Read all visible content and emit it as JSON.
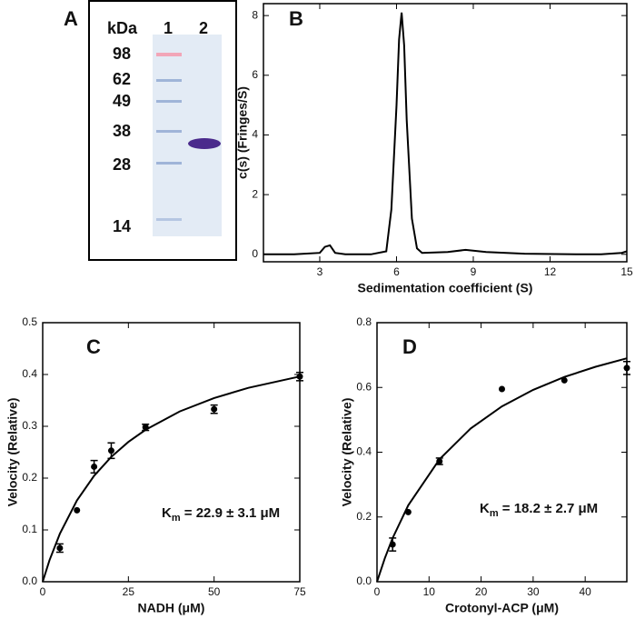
{
  "gel": {
    "panel_label": "A",
    "unit": "kDa",
    "lanes": [
      "1",
      "2"
    ],
    "markers": [
      98,
      62,
      49,
      38,
      28,
      14
    ]
  },
  "chart_data": [
    {
      "type": "line",
      "panel_label": "B",
      "xlabel": "Sedimentation coefficient (S)",
      "ylabel": "c(s) (Fringes/S)",
      "color": "#000000",
      "x": [
        0.8,
        1,
        2,
        3,
        3.2,
        3.4,
        3.6,
        4,
        5,
        5.6,
        5.8,
        6.0,
        6.1,
        6.2,
        6.3,
        6.4,
        6.6,
        6.8,
        7,
        8,
        8.7,
        9.5,
        11,
        13,
        14,
        14.8,
        15
      ],
      "values": [
        0,
        0,
        0,
        0.05,
        0.25,
        0.3,
        0.05,
        0,
        0,
        0.1,
        1.5,
        5,
        7.2,
        8.1,
        7.0,
        4.5,
        1.2,
        0.2,
        0.05,
        0.08,
        0.15,
        0.08,
        0.02,
        0,
        0,
        0.05,
        0.1
      ],
      "xlim": [
        0.8,
        15
      ],
      "ylim": [
        -0.25,
        8.4
      ],
      "xticks": [
        3,
        6,
        9,
        12,
        15
      ],
      "yticks": [
        0,
        2,
        4,
        6,
        8
      ]
    },
    {
      "type": "scatter",
      "panel_label": "C",
      "xlabel": "NADH (μM)",
      "ylabel": "Velocity (Relative)",
      "color": "#000000",
      "x": [
        5,
        10,
        15,
        20,
        30,
        50,
        75
      ],
      "values": [
        0.065,
        0.138,
        0.222,
        0.253,
        0.298,
        0.333,
        0.396
      ],
      "errors": [
        0.008,
        null,
        0.012,
        0.015,
        0.006,
        0.008,
        0.008
      ],
      "fit": {
        "x": [
          0,
          2,
          5,
          10,
          15,
          20,
          25,
          30,
          40,
          50,
          60,
          75
        ],
        "values": [
          0,
          0.0415,
          0.0927,
          0.157,
          0.2046,
          0.241,
          0.2699,
          0.2932,
          0.3288,
          0.3546,
          0.3742,
          0.3961
        ]
      },
      "annotation": {
        "symbol": "K",
        "subscript": "m",
        "text": " = 22.9 ± 3.1 μM"
      },
      "xlim": [
        0,
        75
      ],
      "ylim": [
        0,
        0.5
      ],
      "xticks": [
        0,
        25,
        50,
        75
      ],
      "yticks": [
        {
          "value": 0,
          "label": "0.0"
        },
        0.1,
        0.2,
        0.3,
        0.4,
        0.5
      ]
    },
    {
      "type": "scatter",
      "panel_label": "D",
      "xlabel": "Crotonyl-ACP (μM)",
      "ylabel": "Velocity (Relative)",
      "color": "#000000",
      "x": [
        3,
        6,
        12,
        24,
        36,
        48
      ],
      "values": [
        0.115,
        0.215,
        0.372,
        0.595,
        0.622,
        0.66
      ],
      "errors": [
        0.02,
        null,
        0.01,
        null,
        null,
        0.02
      ],
      "fit": {
        "x": [
          0,
          1.5,
          3,
          6,
          12,
          18,
          24,
          30,
          36,
          42,
          48
        ],
        "values": [
          0,
          0.0725,
          0.1347,
          0.236,
          0.378,
          0.4733,
          0.5414,
          0.5925,
          0.6323,
          0.664,
          0.69
        ]
      },
      "annotation": {
        "symbol": "K",
        "subscript": "m",
        "text": " = 18.2 ± 2.7 μM"
      },
      "xlim": [
        0,
        48
      ],
      "ylim": [
        0,
        0.8
      ],
      "xticks": [
        0,
        10,
        20,
        30,
        40
      ],
      "yticks": [
        {
          "value": 0,
          "label": "0.0"
        },
        0.2,
        0.4,
        0.6,
        0.8
      ]
    }
  ]
}
